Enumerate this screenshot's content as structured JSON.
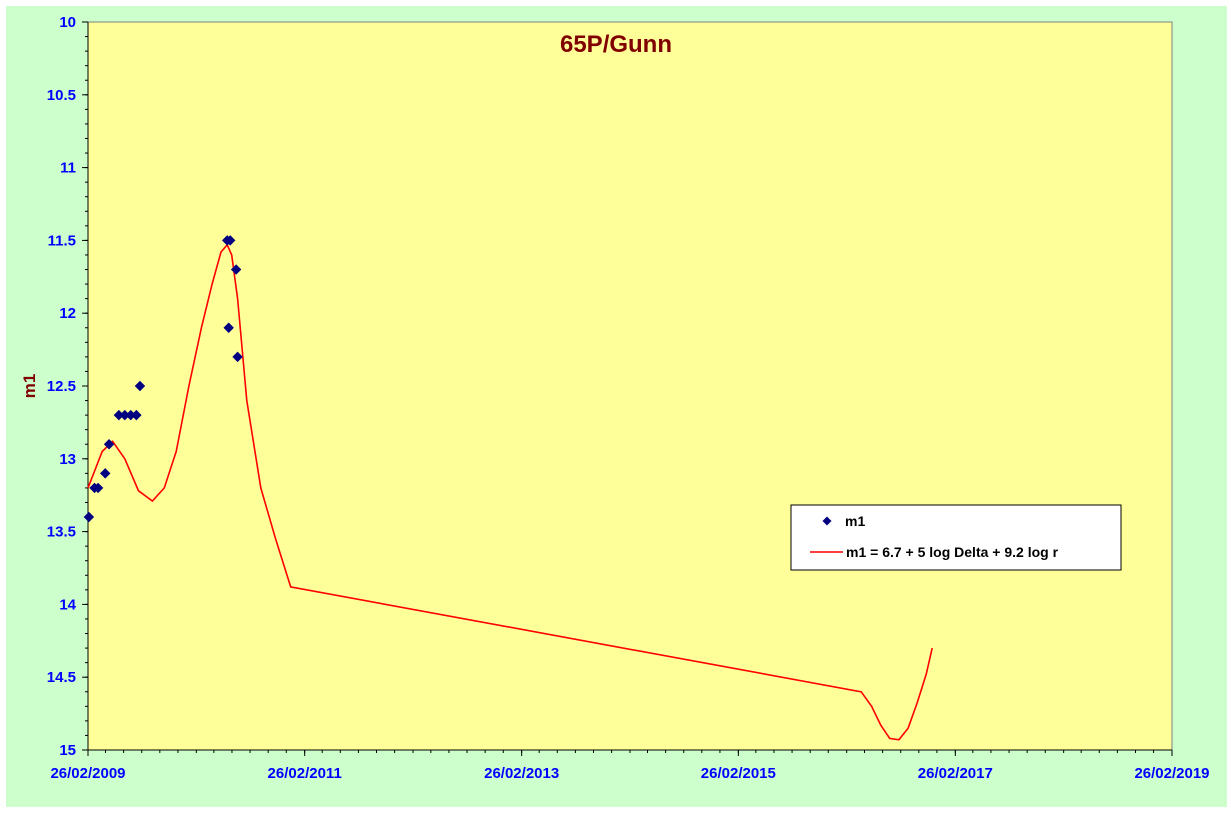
{
  "chart_data": {
    "type": "scatter",
    "title": "65P/Gunn",
    "xlabel": "",
    "ylabel": "m1",
    "x_axis": {
      "type": "date",
      "range": [
        "2009-02-26",
        "2019-02-26"
      ],
      "tick_labels": [
        "26/02/2009",
        "26/02/2011",
        "26/02/2013",
        "26/02/2015",
        "26/02/2017",
        "26/02/2019"
      ]
    },
    "y_axis": {
      "range": [
        10,
        15
      ],
      "inverted": true,
      "tick_labels": [
        "10",
        "10.5",
        "11",
        "11.5",
        "12",
        "12.5",
        "13",
        "13.5",
        "14",
        "14.5",
        "15"
      ]
    },
    "grid": false,
    "legend_position": "right",
    "colors": {
      "outer_background": "#ccffcc",
      "plot_background": "#ffff99",
      "axis_text": "#0000ff",
      "title_text": "#800000",
      "points": "#000080",
      "fit_line": "#ff0000"
    },
    "series": [
      {
        "name": "m1",
        "kind": "points",
        "x": [
          "2009-03-01",
          "2009-03-20",
          "2009-04-01",
          "2009-04-25",
          "2009-05-08",
          "2009-06-10",
          "2009-06-30",
          "2009-07-20",
          "2009-08-08",
          "2009-08-20",
          "2010-06-10",
          "2010-06-15",
          "2010-06-20",
          "2010-07-10",
          "2010-07-15"
        ],
        "y": [
          13.4,
          13.2,
          13.2,
          13.1,
          12.9,
          12.7,
          12.7,
          12.7,
          12.7,
          12.5,
          11.5,
          12.1,
          11.5,
          11.7,
          12.3
        ]
      },
      {
        "name": "m1 = 6.7 + 5 log Delta + 9.2 log r",
        "kind": "line",
        "x": [
          "2009-02-26",
          "2009-04-15",
          "2009-05-20",
          "2009-06-30",
          "2009-08-15",
          "2009-10-01",
          "2009-11-10",
          "2009-12-20",
          "2010-02-01",
          "2010-03-15",
          "2010-04-20",
          "2010-05-20",
          "2010-06-10",
          "2010-06-25",
          "2010-07-15",
          "2010-08-15",
          "2010-10-01",
          "2010-11-20",
          "2011-01-10",
          "2016-04-15",
          "2016-05-20",
          "2016-06-20",
          "2016-07-20",
          "2016-08-20",
          "2016-09-20",
          "2016-10-20",
          "2016-11-20",
          "2016-12-10"
        ],
        "y": [
          13.2,
          12.95,
          12.88,
          13.0,
          13.22,
          13.29,
          13.2,
          12.95,
          12.5,
          12.1,
          11.8,
          11.58,
          11.53,
          11.6,
          11.9,
          12.6,
          13.2,
          13.55,
          13.88,
          14.6,
          14.7,
          14.83,
          14.92,
          14.93,
          14.85,
          14.68,
          14.48,
          14.3
        ]
      }
    ]
  }
}
